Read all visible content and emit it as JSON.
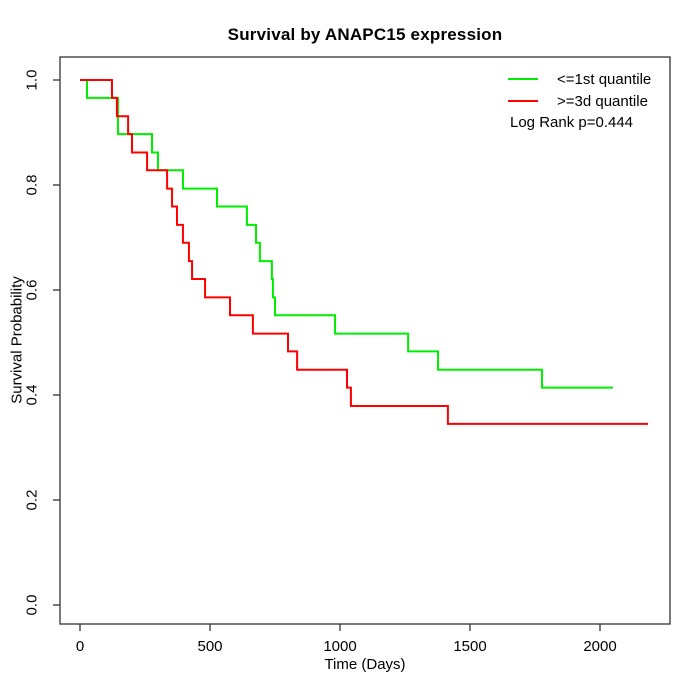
{
  "figure": {
    "title": "Survival by ANAPC15 expression",
    "annotation": "Log Rank p=0.444"
  },
  "chart_data": {
    "type": "line",
    "subtype": "kaplan-meier-step",
    "title": "Survival by ANAPC15 expression",
    "xlabel": "Time (Days)",
    "ylabel": "Survival Probability",
    "xlim": [
      0,
      2200
    ],
    "ylim": [
      0.0,
      1.0
    ],
    "xticks": [
      0,
      500,
      1000,
      1500,
      2000
    ],
    "yticks": [
      0.0,
      0.2,
      0.4,
      0.6,
      0.8,
      1.0
    ],
    "ytick_labels": [
      "0.0",
      "0.2",
      "0.4",
      "0.6",
      "0.8",
      "1.0"
    ],
    "grid": false,
    "legend_position": "top-right",
    "annotation": "Log Rank p=0.444",
    "axis_color": "#333333",
    "series": [
      {
        "name": "<=1st quantile",
        "color": "#00ee00",
        "event_times": [
          0,
          27,
          146,
          277,
          300,
          396,
          527,
          642,
          677,
          692,
          738,
          742,
          750,
          981,
          1262,
          1377,
          1777
        ],
        "survival": [
          1.0,
          0.966,
          0.897,
          0.862,
          0.828,
          0.793,
          0.759,
          0.724,
          0.69,
          0.655,
          0.621,
          0.586,
          0.552,
          0.517,
          0.483,
          0.448,
          0.414
        ],
        "end_time": 2050
      },
      {
        "name": ">=3d quantile",
        "color": "#ff0000",
        "event_times": [
          0,
          123,
          142,
          185,
          200,
          258,
          335,
          354,
          373,
          396,
          419,
          431,
          481,
          577,
          665,
          800,
          835,
          1027,
          1042,
          1415
        ],
        "survival": [
          1.0,
          0.966,
          0.931,
          0.897,
          0.862,
          0.828,
          0.793,
          0.759,
          0.724,
          0.69,
          0.655,
          0.621,
          0.586,
          0.552,
          0.517,
          0.483,
          0.448,
          0.414,
          0.379,
          0.345
        ],
        "end_time": 2185
      }
    ]
  }
}
